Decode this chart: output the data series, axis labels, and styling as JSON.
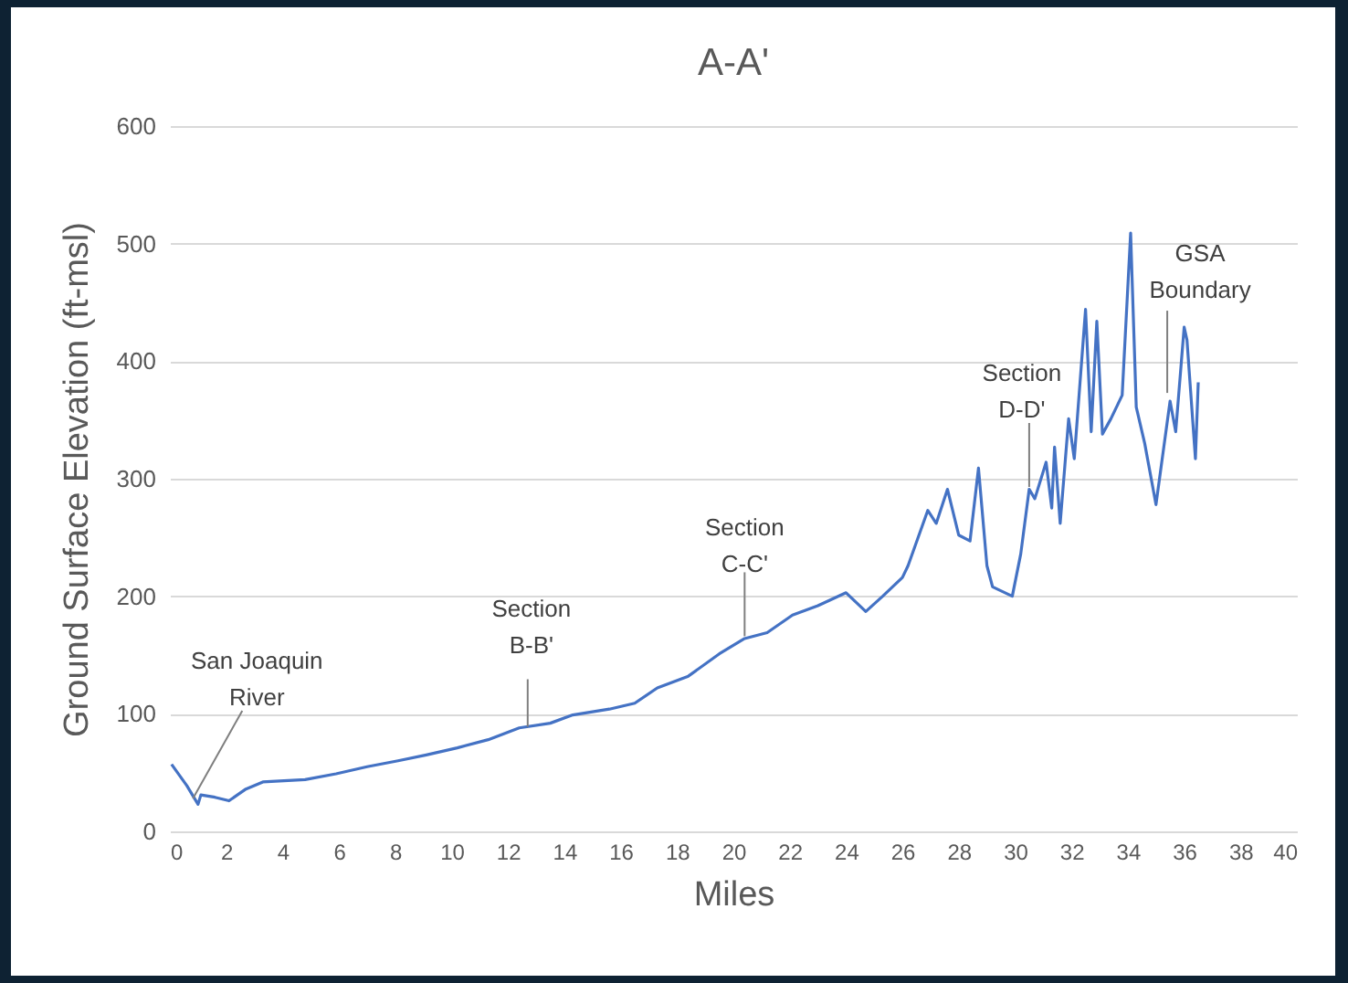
{
  "chart_data": {
    "type": "line",
    "title": "A-A'",
    "xlabel": "Miles",
    "ylabel": "Ground Surface Elevation (ft-msl)",
    "x": [
      0.06,
      0.6,
      1.0,
      1.1,
      1.6,
      2.1,
      2.7,
      3.3,
      4.8,
      5.9,
      7.0,
      8.1,
      9.1,
      10.2,
      11.3,
      12.4,
      13.5,
      14.3,
      15.6,
      16.5,
      17.3,
      18.4,
      19.5,
      20.4,
      21.2,
      22.1,
      23.0,
      24.0,
      24.7,
      25.3,
      26.0,
      26.2,
      26.9,
      27.2,
      27.6,
      28.0,
      28.4,
      28.7,
      29.0,
      29.2,
      29.9,
      30.2,
      30.5,
      30.7,
      31.1,
      31.3,
      31.4,
      31.6,
      31.9,
      32.1,
      32.5,
      32.7,
      32.9,
      33.1,
      33.4,
      33.8,
      34.1,
      34.3,
      34.6,
      35.0,
      35.5,
      35.7,
      36.0,
      36.1,
      36.4,
      36.5
    ],
    "series": [
      {
        "color": "#4472c4",
        "values": [
          57,
          39,
          23,
          31,
          29,
          26,
          36,
          42,
          44,
          49,
          55,
          60,
          65,
          71,
          78,
          88,
          92,
          99,
          104,
          109,
          122,
          132,
          151,
          164,
          169,
          184,
          192,
          203,
          187,
          200,
          216,
          226,
          273,
          262,
          291,
          252,
          247,
          309,
          226,
          208,
          200,
          236,
          291,
          283,
          314,
          275,
          327,
          262,
          351,
          317,
          444,
          340,
          434,
          338,
          351,
          371,
          509,
          361,
          330,
          278,
          366,
          340,
          429,
          418,
          317,
          382
        ]
      }
    ],
    "xlim": [
      0,
      40
    ],
    "xticks": [
      0,
      2,
      4,
      6,
      8,
      10,
      12,
      14,
      16,
      18,
      20,
      22,
      24,
      26,
      28,
      30,
      32,
      34,
      36,
      38,
      40
    ],
    "ylim": [
      0,
      600
    ],
    "yticks": [
      0,
      100,
      200,
      300,
      400,
      500,
      600
    ],
    "grid": "y",
    "legend": false,
    "annotations": [
      {
        "text": "San Joaquin River",
        "x": 0.82,
        "y": 28
      },
      {
        "text": "Section B-B'",
        "x": 12.7,
        "y": 89
      },
      {
        "text": "Section C-C'",
        "x": 20.4,
        "y": 166
      },
      {
        "text": "Section D-D'",
        "x": 30.5,
        "y": 293
      },
      {
        "text": "GSA Boundary",
        "x": 35.4,
        "y": 373
      }
    ]
  }
}
